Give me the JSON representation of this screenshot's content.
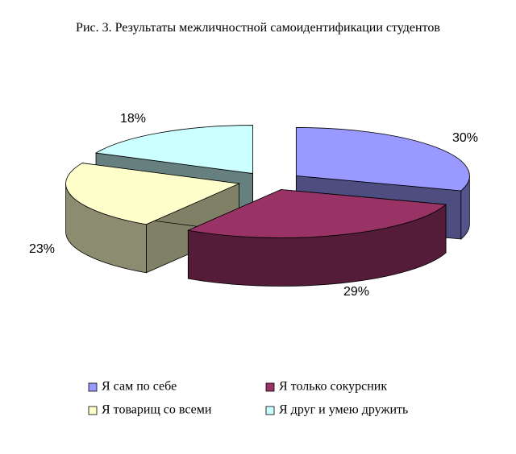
{
  "chart_data": {
    "type": "pie3d",
    "title": "Рис. 3.  Результаты межличностной самоидентификации студентов",
    "categories": [
      "Я сам по себе",
      "Я только сокурсник",
      "Я товарищ со всеми",
      "Я друг и умею дружить"
    ],
    "values": [
      30,
      29,
      23,
      18
    ],
    "value_labels": [
      "30%",
      "29%",
      "23%",
      "18%"
    ],
    "colors": [
      "#9999ff",
      "#993366",
      "#ffffcc",
      "#ccffff"
    ]
  }
}
